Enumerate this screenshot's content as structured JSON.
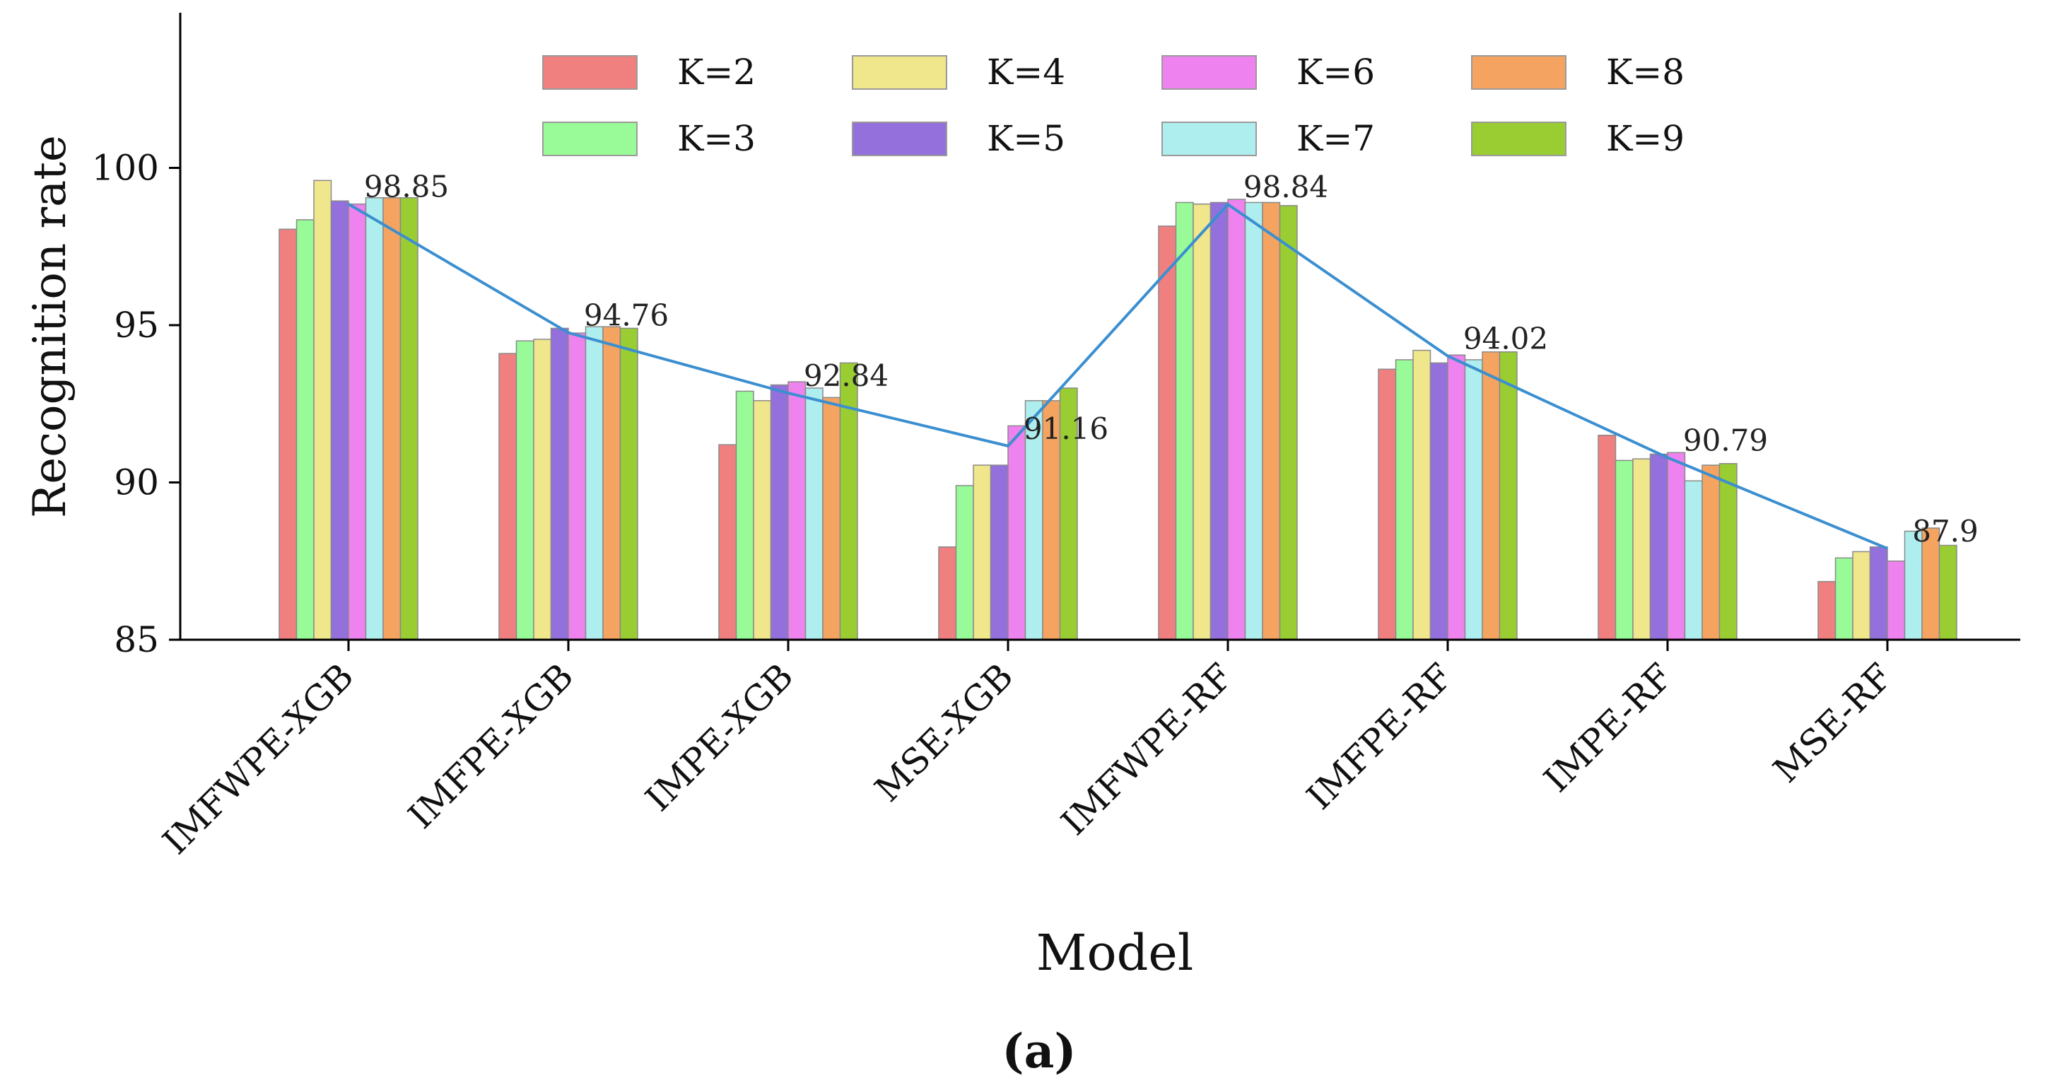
{
  "chart_data": {
    "type": "bar",
    "title": "",
    "xlabel": "Model",
    "ylabel": "Recognition rate",
    "caption": "(a)",
    "ylim": [
      85,
      105
    ],
    "yticks": [
      85,
      90,
      95,
      100
    ],
    "grid": false,
    "legend_position": "top",
    "categories": [
      "IMFWPE-XGB",
      "IMFPE-XGB",
      "IMPE-XGB",
      "MSE-XGB",
      "IMFWPE-RF",
      "IMFPE-RF",
      "IMPE-RF",
      "MSE-RF"
    ],
    "series": [
      {
        "name": "K=2",
        "color": "#f08080",
        "values": [
          98.05,
          94.1,
          91.2,
          87.95,
          98.15,
          93.6,
          91.5,
          86.85
        ]
      },
      {
        "name": "K=3",
        "color": "#98fb98",
        "values": [
          98.35,
          94.5,
          92.9,
          89.9,
          98.9,
          93.9,
          90.7,
          87.6
        ]
      },
      {
        "name": "K=4",
        "color": "#f0e68c",
        "values": [
          99.6,
          94.55,
          92.6,
          90.55,
          98.85,
          94.2,
          90.75,
          87.8
        ]
      },
      {
        "name": "K=5",
        "color": "#9370db",
        "values": [
          98.95,
          94.9,
          93.1,
          90.55,
          98.9,
          93.8,
          90.9,
          87.95
        ]
      },
      {
        "name": "K=6",
        "color": "#ee82ee",
        "values": [
          98.85,
          94.75,
          93.2,
          91.8,
          99.0,
          94.05,
          90.95,
          87.5
        ]
      },
      {
        "name": "K=7",
        "color": "#afeeee",
        "values": [
          99.05,
          94.95,
          93.0,
          92.6,
          98.9,
          93.9,
          90.05,
          88.45
        ]
      },
      {
        "name": "K=8",
        "color": "#f4a460",
        "values": [
          99.05,
          94.95,
          92.7,
          92.6,
          98.9,
          94.15,
          90.55,
          88.55
        ]
      },
      {
        "name": "K=9",
        "color": "#9acd32",
        "values": [
          99.05,
          94.9,
          93.8,
          93.0,
          98.8,
          94.15,
          90.6,
          88.0
        ]
      }
    ],
    "line": {
      "color": "#3b8fd0",
      "values": [
        98.85,
        94.76,
        92.84,
        91.16,
        98.84,
        94.02,
        90.79,
        87.9
      ],
      "labels": [
        "98.85",
        "94.76",
        "92.84",
        "91.16",
        "98.84",
        "94.02",
        "90.79",
        "87.9"
      ]
    }
  }
}
